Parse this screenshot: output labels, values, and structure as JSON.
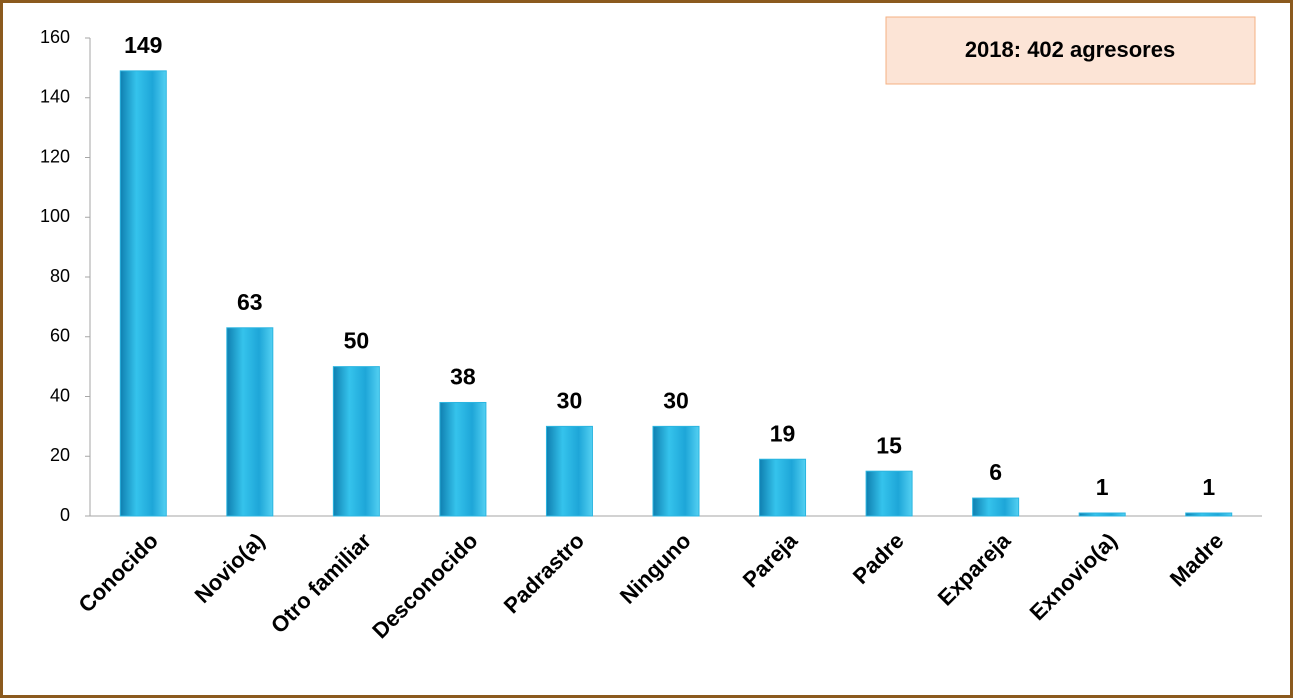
{
  "chart_data": {
    "type": "bar",
    "annotation": "2018:  402  agresores",
    "categories": [
      "Conocido",
      "Novio(a)",
      "Otro familiar",
      "Desconocido",
      "Padrastro",
      "Ninguno",
      "Pareja",
      "Padre",
      "Expareja",
      "Exnovio(a)",
      "Madre"
    ],
    "values": [
      149,
      63,
      50,
      38,
      30,
      30,
      19,
      15,
      6,
      1,
      1
    ],
    "color": "#2bb5e0",
    "ylim": [
      0,
      160
    ],
    "yticks": [
      0,
      20,
      40,
      60,
      80,
      100,
      120,
      140,
      160
    ],
    "grid": false
  }
}
